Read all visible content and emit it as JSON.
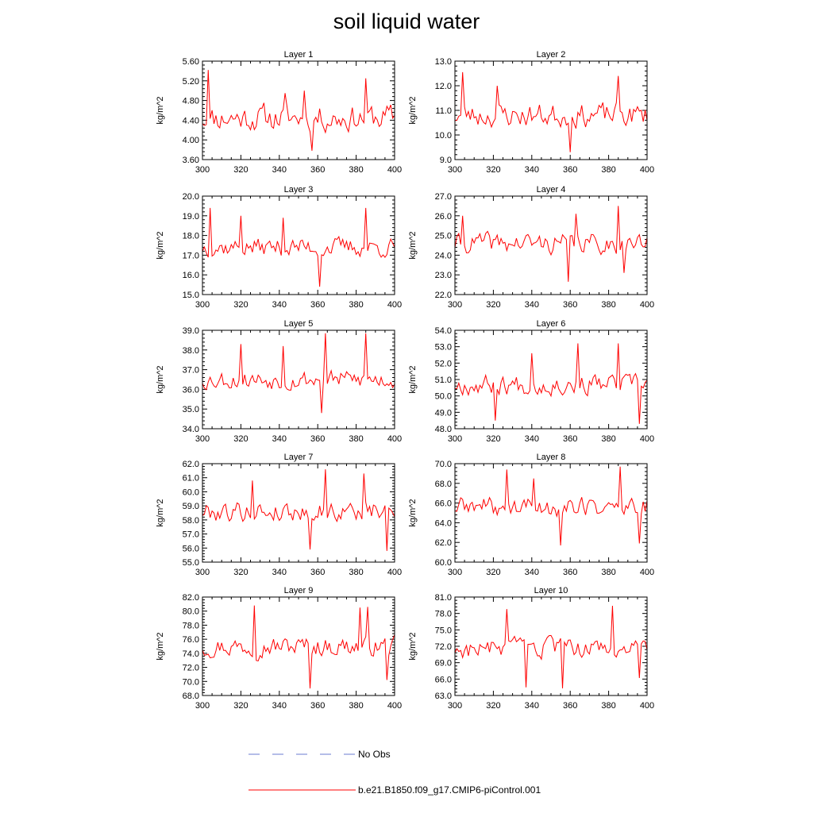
{
  "title": "soil liquid water",
  "legend": {
    "obs_label": "No Obs",
    "obs_color": "#6a7bd1",
    "model_label": "b.e21.B1850.f09_g17.CMIP6-piControl.001",
    "model_color": "#ff0000"
  },
  "chart_data": [
    {
      "type": "line",
      "title": "Layer 1",
      "ylabel": "kg/m^2",
      "xlim": [
        300,
        400
      ],
      "ylim": [
        3.6,
        5.6
      ],
      "xticks": [
        300,
        320,
        340,
        360,
        380,
        400
      ],
      "yticks": [
        3.6,
        4.0,
        4.4,
        4.8,
        5.2,
        5.6
      ],
      "ytick_labels": [
        "3.60",
        "4.00",
        "4.40",
        "4.80",
        "5.20",
        "5.60"
      ],
      "seed": 11,
      "base": 4.45,
      "amp": 0.42,
      "peaks": [
        [
          303,
          5.42
        ],
        [
          385,
          5.25
        ],
        [
          357,
          3.78
        ],
        [
          343,
          4.95
        ],
        [
          353,
          5.0
        ]
      ],
      "series": [
        {
          "name": "b.e21.B1850.f09_g17.CMIP6-piControl.001",
          "color": "#ff0000"
        }
      ]
    },
    {
      "type": "line",
      "title": "Layer 2",
      "ylabel": "kg/m^2",
      "xlim": [
        300,
        400
      ],
      "ylim": [
        9.0,
        13.0
      ],
      "xticks": [
        300,
        320,
        340,
        360,
        380,
        400
      ],
      "yticks": [
        9.0,
        10.0,
        11.0,
        12.0,
        13.0
      ],
      "ytick_labels": [
        "9.0",
        "10.0",
        "11.0",
        "12.0",
        "13.0"
      ],
      "seed": 23,
      "base": 10.8,
      "amp": 0.75,
      "peaks": [
        [
          304,
          12.55
        ],
        [
          385,
          12.4
        ],
        [
          360,
          9.3
        ],
        [
          322,
          12.0
        ]
      ],
      "series": [
        {
          "name": "b.e21.B1850.f09_g17.CMIP6-piControl.001",
          "color": "#ff0000"
        }
      ]
    },
    {
      "type": "line",
      "title": "Layer 3",
      "ylabel": "kg/m^2",
      "xlim": [
        300,
        400
      ],
      "ylim": [
        15.0,
        20.0
      ],
      "xticks": [
        300,
        320,
        340,
        360,
        380,
        400
      ],
      "yticks": [
        15.0,
        16.0,
        17.0,
        18.0,
        19.0,
        20.0
      ],
      "ytick_labels": [
        "15.0",
        "16.0",
        "17.0",
        "18.0",
        "19.0",
        "20.0"
      ],
      "seed": 37,
      "base": 17.4,
      "amp": 0.75,
      "peaks": [
        [
          304,
          19.4
        ],
        [
          385,
          19.4
        ],
        [
          361,
          15.4
        ],
        [
          320,
          19.0
        ],
        [
          342,
          18.9
        ]
      ],
      "series": [
        {
          "name": "b.e21.B1850.f09_g17.CMIP6-piControl.001",
          "color": "#ff0000"
        }
      ]
    },
    {
      "type": "line",
      "title": "Layer 4",
      "ylabel": "kg/m^2",
      "xlim": [
        300,
        400
      ],
      "ylim": [
        22.0,
        27.0
      ],
      "xticks": [
        300,
        320,
        340,
        360,
        380,
        400
      ],
      "yticks": [
        22.0,
        23.0,
        24.0,
        25.0,
        26.0,
        27.0
      ],
      "ytick_labels": [
        "22.0",
        "23.0",
        "24.0",
        "25.0",
        "26.0",
        "27.0"
      ],
      "seed": 41,
      "base": 24.6,
      "amp": 0.8,
      "peaks": [
        [
          385,
          26.5
        ],
        [
          359,
          22.65
        ],
        [
          363,
          26.1
        ],
        [
          304,
          26.0
        ],
        [
          388,
          23.1
        ]
      ],
      "series": [
        {
          "name": "b.e21.B1850.f09_g17.CMIP6-piControl.001",
          "color": "#ff0000"
        }
      ]
    },
    {
      "type": "line",
      "title": "Layer 5",
      "ylabel": "kg/m^2",
      "xlim": [
        300,
        400
      ],
      "ylim": [
        34.0,
        39.0
      ],
      "xticks": [
        300,
        320,
        340,
        360,
        380,
        400
      ],
      "yticks": [
        34.0,
        35.0,
        36.0,
        37.0,
        38.0,
        39.0
      ],
      "ytick_labels": [
        "34.0",
        "35.0",
        "36.0",
        "37.0",
        "38.0",
        "39.0"
      ],
      "seed": 53,
      "base": 36.5,
      "amp": 0.75,
      "peaks": [
        [
          364,
          38.9
        ],
        [
          385,
          38.9
        ],
        [
          362,
          34.8
        ],
        [
          320,
          38.3
        ],
        [
          342,
          38.2
        ]
      ],
      "series": [
        {
          "name": "b.e21.B1850.f09_g17.CMIP6-piControl.001",
          "color": "#ff0000"
        }
      ]
    },
    {
      "type": "line",
      "title": "Layer 6",
      "ylabel": "kg/m^2",
      "xlim": [
        300,
        400
      ],
      "ylim": [
        48.0,
        54.0
      ],
      "xticks": [
        300,
        320,
        340,
        360,
        380,
        400
      ],
      "yticks": [
        48.0,
        49.0,
        50.0,
        51.0,
        52.0,
        53.0,
        54.0
      ],
      "ytick_labels": [
        "48.0",
        "49.0",
        "50.0",
        "51.0",
        "52.0",
        "53.0",
        "54.0"
      ],
      "seed": 67,
      "base": 50.7,
      "amp": 0.95,
      "peaks": [
        [
          385,
          53.2
        ],
        [
          364,
          53.2
        ],
        [
          396,
          48.3
        ],
        [
          321,
          48.5
        ],
        [
          340,
          52.6
        ]
      ],
      "series": [
        {
          "name": "b.e21.B1850.f09_g17.CMIP6-piControl.001",
          "color": "#ff0000"
        }
      ]
    },
    {
      "type": "line",
      "title": "Layer 7",
      "ylabel": "kg/m^2",
      "xlim": [
        300,
        400
      ],
      "ylim": [
        55.0,
        62.0
      ],
      "xticks": [
        300,
        320,
        340,
        360,
        380,
        400
      ],
      "yticks": [
        55.0,
        56.0,
        57.0,
        58.0,
        59.0,
        60.0,
        61.0,
        62.0
      ],
      "ytick_labels": [
        "55.0",
        "56.0",
        "57.0",
        "58.0",
        "59.0",
        "60.0",
        "61.0",
        "62.0"
      ],
      "seed": 79,
      "base": 58.6,
      "amp": 1.1,
      "peaks": [
        [
          364,
          61.6
        ],
        [
          384,
          61.3
        ],
        [
          396,
          55.8
        ],
        [
          356,
          55.9
        ],
        [
          326,
          60.8
        ]
      ],
      "series": [
        {
          "name": "b.e21.B1850.f09_g17.CMIP6-piControl.001",
          "color": "#ff0000"
        }
      ]
    },
    {
      "type": "line",
      "title": "Layer 8",
      "ylabel": "kg/m^2",
      "xlim": [
        300,
        400
      ],
      "ylim": [
        60.0,
        70.0
      ],
      "xticks": [
        300,
        320,
        340,
        360,
        380,
        400
      ],
      "yticks": [
        60.0,
        62.0,
        64.0,
        66.0,
        68.0,
        70.0
      ],
      "ytick_labels": [
        "60.0",
        "62.0",
        "64.0",
        "66.0",
        "68.0",
        "70.0"
      ],
      "seed": 89,
      "base": 65.6,
      "amp": 1.6,
      "peaks": [
        [
          386,
          69.8
        ],
        [
          327,
          69.4
        ],
        [
          355,
          61.7
        ],
        [
          396,
          61.9
        ],
        [
          341,
          68.5
        ]
      ],
      "series": [
        {
          "name": "b.e21.B1850.f09_g17.CMIP6-piControl.001",
          "color": "#ff0000"
        }
      ]
    },
    {
      "type": "line",
      "title": "Layer 9",
      "ylabel": "kg/m^2",
      "xlim": [
        300,
        400
      ],
      "ylim": [
        68.0,
        82.0
      ],
      "xticks": [
        300,
        320,
        340,
        360,
        380,
        400
      ],
      "yticks": [
        68.0,
        70.0,
        72.0,
        74.0,
        76.0,
        78.0,
        80.0,
        82.0
      ],
      "ytick_labels": [
        "68.0",
        "70.0",
        "72.0",
        "74.0",
        "76.0",
        "78.0",
        "80.0",
        "82.0"
      ],
      "seed": 97,
      "base": 75.0,
      "amp": 2.2,
      "peaks": [
        [
          327,
          80.8
        ],
        [
          386,
          80.6
        ],
        [
          356,
          69.0
        ],
        [
          396,
          70.2
        ],
        [
          382,
          80.5
        ]
      ],
      "series": [
        {
          "name": "b.e21.B1850.f09_g17.CMIP6-piControl.001",
          "color": "#ff0000"
        }
      ]
    },
    {
      "type": "line",
      "title": "Layer 10",
      "ylabel": "kg/m^2",
      "xlim": [
        300,
        400
      ],
      "ylim": [
        63.0,
        81.0
      ],
      "xticks": [
        300,
        320,
        340,
        360,
        380,
        400
      ],
      "yticks": [
        63.0,
        66.0,
        69.0,
        72.0,
        75.0,
        78.0,
        81.0
      ],
      "ytick_labels": [
        "63.0",
        "66.0",
        "69.0",
        "72.0",
        "75.0",
        "78.0",
        "81.0"
      ],
      "seed": 103,
      "base": 71.5,
      "amp": 2.8,
      "peaks": [
        [
          327,
          78.8
        ],
        [
          382,
          79.4
        ],
        [
          356,
          64.3
        ],
        [
          337,
          64.5
        ],
        [
          396,
          66.2
        ]
      ],
      "series": [
        {
          "name": "b.e21.B1850.f09_g17.CMIP6-piControl.001",
          "color": "#ff0000"
        }
      ]
    }
  ]
}
